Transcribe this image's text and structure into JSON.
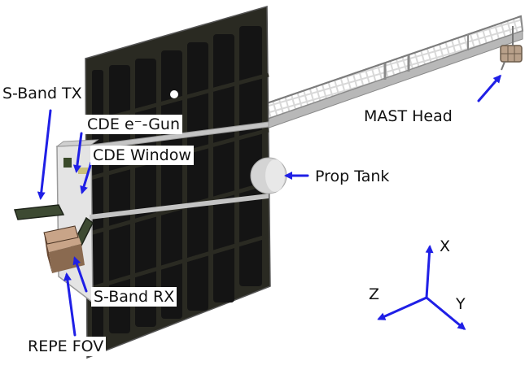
{
  "labels": {
    "sband_tx": "S-Band TX",
    "cde_egun": "CDE e⁻-Gun",
    "cde_window": "CDE Window",
    "prop_tank": "Prop Tank",
    "mast_head": "MAST Head",
    "sband_rx": "S-Band RX",
    "repe_fov": "REPE FOV"
  },
  "axes": {
    "x": "X",
    "y": "Y",
    "z": "Z"
  },
  "colors": {
    "arrow": "#1f1fe6",
    "panel": "#2a2a22",
    "cell": "#141414",
    "frame": "#a8a8a8",
    "mast": "#9a9a9a",
    "tank": "#d4d4d4",
    "bus": "#e4e4e4",
    "brown": "#8a6a50"
  }
}
